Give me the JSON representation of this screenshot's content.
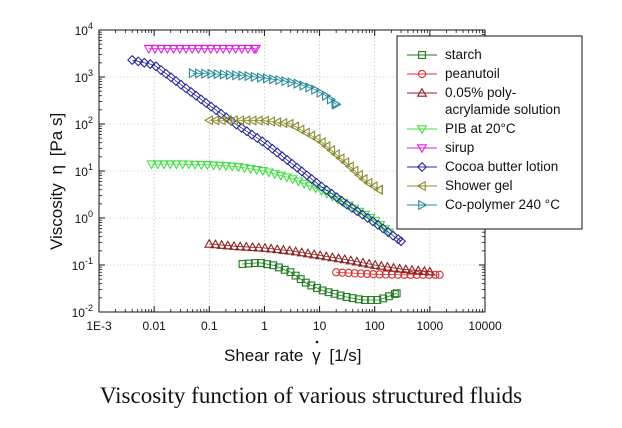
{
  "caption": "Viscosity function of various structured fluids",
  "chart_data": {
    "type": "scatter",
    "xlabel": "Shear rate",
    "xlabel_symbol": "γ",
    "xlabel_unit": "[1/s]",
    "ylabel": "Viscosity",
    "ylabel_symbol": "η",
    "ylabel_unit": "[Pa s]",
    "xscale": "log",
    "yscale": "log",
    "xlim": [
      0.001,
      10000
    ],
    "ylim": [
      0.01,
      10000
    ],
    "x_tick_labels": [
      "1E-3",
      "0.01",
      "0.1",
      "1",
      "10",
      "100",
      "1000",
      "10000"
    ],
    "y_tick_labels": [
      {
        "base": "10",
        "exp": "-2"
      },
      {
        "base": "10",
        "exp": "-1"
      },
      {
        "base": "10",
        "exp": "0"
      },
      {
        "base": "10",
        "exp": "1"
      },
      {
        "base": "10",
        "exp": "2"
      },
      {
        "base": "10",
        "exp": "3"
      },
      {
        "base": "10",
        "exp": "4"
      }
    ],
    "legend_position": "top-right",
    "series": [
      {
        "name": "starch",
        "legend_lines": [
          "starch"
        ],
        "color": "#1f7a1f",
        "marker": "square",
        "points": [
          [
            0.4,
            0.105
          ],
          [
            0.8,
            0.112
          ],
          [
            1.5,
            0.098
          ],
          [
            3,
            0.07
          ],
          [
            6,
            0.04
          ],
          [
            12,
            0.028
          ],
          [
            30,
            0.021
          ],
          [
            60,
            0.018
          ],
          [
            120,
            0.018
          ],
          [
            250,
            0.025
          ]
        ]
      },
      {
        "name": "peanutoil",
        "legend_lines": [
          "peanutoil"
        ],
        "color": "#d93030",
        "marker": "circle",
        "points": [
          [
            20,
            0.07
          ],
          [
            50,
            0.066
          ],
          [
            120,
            0.063
          ],
          [
            300,
            0.062
          ],
          [
            800,
            0.062
          ],
          [
            1500,
            0.062
          ]
        ]
      },
      {
        "name": "0.05% poly-acrylamide solution",
        "legend_lines": [
          "0.05% poly-",
          "acrylamide solution"
        ],
        "color": "#8b2020",
        "marker": "triangle-up",
        "points": [
          [
            0.1,
            0.28
          ],
          [
            0.3,
            0.25
          ],
          [
            1,
            0.23
          ],
          [
            3,
            0.2
          ],
          [
            10,
            0.16
          ],
          [
            30,
            0.13
          ],
          [
            100,
            0.1
          ],
          [
            300,
            0.082
          ],
          [
            1000,
            0.072
          ]
        ]
      },
      {
        "name": "PIB at 20°C",
        "legend_lines": [
          "PIB at 20°C"
        ],
        "color": "#44dd44",
        "marker": "triangle-down",
        "points": [
          [
            0.009,
            14
          ],
          [
            0.03,
            14
          ],
          [
            0.1,
            13.5
          ],
          [
            0.3,
            12.5
          ],
          [
            1,
            10
          ],
          [
            3,
            7
          ],
          [
            10,
            4
          ],
          [
            30,
            2
          ],
          [
            100,
            0.9
          ],
          [
            180,
            0.5
          ]
        ]
      },
      {
        "name": "sirup",
        "legend_lines": [
          "sirup"
        ],
        "color": "#dd22dd",
        "marker": "triangle-down",
        "points": [
          [
            0.008,
            4000
          ],
          [
            0.02,
            4000
          ],
          [
            0.05,
            4000
          ],
          [
            0.1,
            4000
          ],
          [
            0.2,
            4000
          ],
          [
            0.4,
            4000
          ],
          [
            0.7,
            4000
          ]
        ]
      },
      {
        "name": "Cocoa butter lotion",
        "legend_lines": [
          "Cocoa butter lotion"
        ],
        "color": "#2b2b9a",
        "marker": "diamond",
        "points": [
          [
            0.004,
            2300
          ],
          [
            0.01,
            1800
          ],
          [
            0.03,
            700
          ],
          [
            0.1,
            250
          ],
          [
            0.3,
            100
          ],
          [
            1,
            40
          ],
          [
            3,
            15
          ],
          [
            10,
            5
          ],
          [
            30,
            2
          ],
          [
            100,
            0.8
          ],
          [
            300,
            0.32
          ]
        ]
      },
      {
        "name": "Shower gel",
        "legend_lines": [
          "Shower gel"
        ],
        "color": "#8a8a30",
        "marker": "triangle-left",
        "points": [
          [
            0.1,
            120
          ],
          [
            0.3,
            120
          ],
          [
            1,
            118
          ],
          [
            3,
            100
          ],
          [
            10,
            45
          ],
          [
            30,
            15
          ],
          [
            70,
            6
          ],
          [
            120,
            4
          ]
        ]
      },
      {
        "name": "Co-polymer 240 °C",
        "legend_lines": [
          "Co-polymer 240 °C"
        ],
        "color": "#2a8a9a",
        "marker": "triangle-right",
        "points": [
          [
            0.05,
            1200
          ],
          [
            0.15,
            1150
          ],
          [
            0.5,
            1050
          ],
          [
            1,
            950
          ],
          [
            2,
            850
          ],
          [
            4,
            720
          ],
          [
            8,
            550
          ],
          [
            14,
            380
          ],
          [
            20,
            260
          ]
        ]
      }
    ]
  }
}
